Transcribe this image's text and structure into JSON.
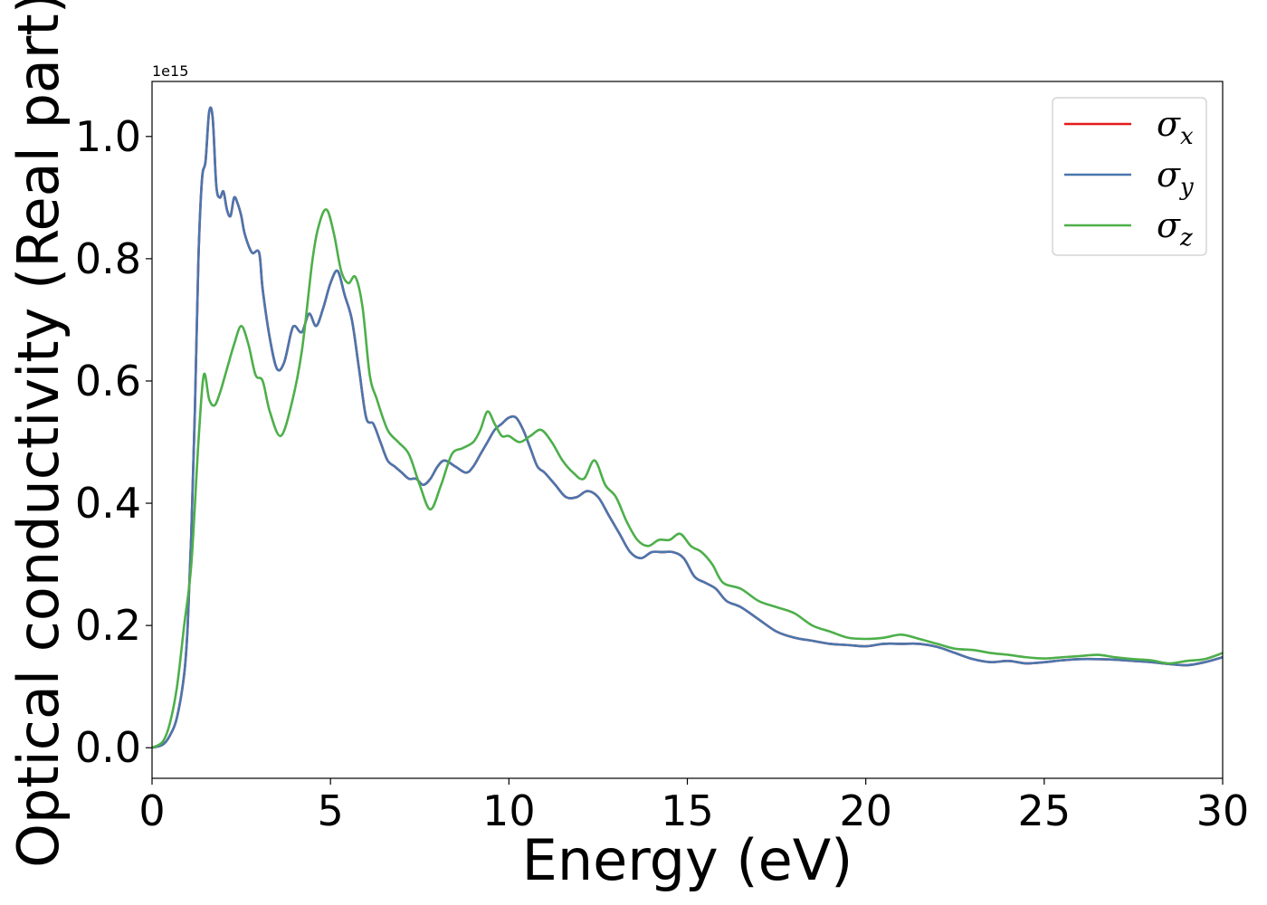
{
  "chart_data": {
    "type": "line",
    "title": "",
    "xlabel": "Energy (eV)",
    "ylabel": "Optical conductivity (Real part)",
    "y_offset_label": "1e15",
    "y_scale_factor": 1000000000000000.0,
    "xlim": [
      0,
      30
    ],
    "ylim": [
      -0.05,
      1.09
    ],
    "x_ticks": [
      0,
      5,
      10,
      15,
      20,
      25,
      30
    ],
    "x_tick_labels": [
      "0",
      "5",
      "10",
      "15",
      "20",
      "25",
      "30"
    ],
    "y_ticks": [
      0.0,
      0.2,
      0.4,
      0.6,
      0.8,
      1.0
    ],
    "y_tick_labels": [
      "0.0",
      "0.2",
      "0.4",
      "0.6",
      "0.8",
      "1.0"
    ],
    "grid": false,
    "legend_position": "top-right",
    "series": [
      {
        "name": "σx",
        "name_base": "σ",
        "name_sub": "x",
        "color": "#e41a1c",
        "x": [
          0,
          0.3,
          0.5,
          0.7,
          0.9,
          1.0,
          1.1,
          1.2,
          1.3,
          1.4,
          1.5,
          1.6,
          1.7,
          1.8,
          1.9,
          2.0,
          2.1,
          2.2,
          2.3,
          2.4,
          2.5,
          2.6,
          2.8,
          3.0,
          3.1,
          3.3,
          3.5,
          3.7,
          3.9,
          4.0,
          4.2,
          4.4,
          4.6,
          4.8,
          5.0,
          5.2,
          5.4,
          5.6,
          5.8,
          6.0,
          6.2,
          6.4,
          6.6,
          6.8,
          7.0,
          7.2,
          7.4,
          7.6,
          7.8,
          8.0,
          8.2,
          8.5,
          8.8,
          9.0,
          9.2,
          9.4,
          9.6,
          9.8,
          10.0,
          10.2,
          10.4,
          10.6,
          10.8,
          11.0,
          11.3,
          11.6,
          11.9,
          12.2,
          12.5,
          12.8,
          13.1,
          13.4,
          13.7,
          14.0,
          14.3,
          14.6,
          14.9,
          15.2,
          15.5,
          15.8,
          16.1,
          16.5,
          17.0,
          17.5,
          18.0,
          18.5,
          19.0,
          19.5,
          20.0,
          20.5,
          21.0,
          21.5,
          22.0,
          22.5,
          23.0,
          23.5,
          24.0,
          24.5,
          25.0,
          25.5,
          26.0,
          26.5,
          27.0,
          27.5,
          28.0,
          28.5,
          29.0,
          29.5,
          30.0
        ],
        "values": [
          0.0,
          0.005,
          0.02,
          0.05,
          0.12,
          0.2,
          0.35,
          0.55,
          0.8,
          0.93,
          0.96,
          1.04,
          1.03,
          0.92,
          0.9,
          0.91,
          0.88,
          0.87,
          0.9,
          0.89,
          0.87,
          0.84,
          0.81,
          0.81,
          0.75,
          0.67,
          0.62,
          0.63,
          0.68,
          0.69,
          0.68,
          0.71,
          0.69,
          0.72,
          0.76,
          0.78,
          0.74,
          0.7,
          0.62,
          0.54,
          0.53,
          0.5,
          0.47,
          0.46,
          0.45,
          0.44,
          0.44,
          0.43,
          0.44,
          0.46,
          0.47,
          0.46,
          0.45,
          0.46,
          0.48,
          0.5,
          0.52,
          0.53,
          0.54,
          0.54,
          0.52,
          0.49,
          0.46,
          0.45,
          0.43,
          0.41,
          0.41,
          0.42,
          0.41,
          0.38,
          0.35,
          0.32,
          0.31,
          0.32,
          0.32,
          0.32,
          0.31,
          0.28,
          0.27,
          0.26,
          0.24,
          0.23,
          0.21,
          0.19,
          0.18,
          0.175,
          0.17,
          0.168,
          0.166,
          0.17,
          0.17,
          0.17,
          0.165,
          0.155,
          0.145,
          0.14,
          0.142,
          0.138,
          0.14,
          0.143,
          0.145,
          0.145,
          0.144,
          0.142,
          0.14,
          0.137,
          0.135,
          0.14,
          0.148
        ]
      },
      {
        "name": "σy",
        "name_base": "σ",
        "name_sub": "y",
        "color": "#4a76ad",
        "x": [
          0,
          0.3,
          0.5,
          0.7,
          0.9,
          1.0,
          1.1,
          1.2,
          1.3,
          1.4,
          1.5,
          1.6,
          1.7,
          1.8,
          1.9,
          2.0,
          2.1,
          2.2,
          2.3,
          2.4,
          2.5,
          2.6,
          2.8,
          3.0,
          3.1,
          3.3,
          3.5,
          3.7,
          3.9,
          4.0,
          4.2,
          4.4,
          4.6,
          4.8,
          5.0,
          5.2,
          5.4,
          5.6,
          5.8,
          6.0,
          6.2,
          6.4,
          6.6,
          6.8,
          7.0,
          7.2,
          7.4,
          7.6,
          7.8,
          8.0,
          8.2,
          8.5,
          8.8,
          9.0,
          9.2,
          9.4,
          9.6,
          9.8,
          10.0,
          10.2,
          10.4,
          10.6,
          10.8,
          11.0,
          11.3,
          11.6,
          11.9,
          12.2,
          12.5,
          12.8,
          13.1,
          13.4,
          13.7,
          14.0,
          14.3,
          14.6,
          14.9,
          15.2,
          15.5,
          15.8,
          16.1,
          16.5,
          17.0,
          17.5,
          18.0,
          18.5,
          19.0,
          19.5,
          20.0,
          20.5,
          21.0,
          21.5,
          22.0,
          22.5,
          23.0,
          23.5,
          24.0,
          24.5,
          25.0,
          25.5,
          26.0,
          26.5,
          27.0,
          27.5,
          28.0,
          28.5,
          29.0,
          29.5,
          30.0
        ],
        "values": [
          0.0,
          0.005,
          0.02,
          0.05,
          0.12,
          0.2,
          0.35,
          0.55,
          0.8,
          0.93,
          0.96,
          1.04,
          1.03,
          0.92,
          0.9,
          0.91,
          0.88,
          0.87,
          0.9,
          0.89,
          0.87,
          0.84,
          0.81,
          0.81,
          0.75,
          0.67,
          0.62,
          0.63,
          0.68,
          0.69,
          0.68,
          0.71,
          0.69,
          0.72,
          0.76,
          0.78,
          0.74,
          0.7,
          0.62,
          0.54,
          0.53,
          0.5,
          0.47,
          0.46,
          0.45,
          0.44,
          0.44,
          0.43,
          0.44,
          0.46,
          0.47,
          0.46,
          0.45,
          0.46,
          0.48,
          0.5,
          0.52,
          0.53,
          0.54,
          0.54,
          0.52,
          0.49,
          0.46,
          0.45,
          0.43,
          0.41,
          0.41,
          0.42,
          0.41,
          0.38,
          0.35,
          0.32,
          0.31,
          0.32,
          0.32,
          0.32,
          0.31,
          0.28,
          0.27,
          0.26,
          0.24,
          0.23,
          0.21,
          0.19,
          0.18,
          0.175,
          0.17,
          0.168,
          0.166,
          0.17,
          0.17,
          0.17,
          0.165,
          0.155,
          0.145,
          0.14,
          0.142,
          0.138,
          0.14,
          0.143,
          0.145,
          0.145,
          0.144,
          0.142,
          0.14,
          0.137,
          0.135,
          0.14,
          0.148
        ]
      },
      {
        "name": "σz",
        "name_base": "σ",
        "name_sub": "z",
        "color": "#4daf4a",
        "x": [
          0,
          0.3,
          0.5,
          0.7,
          0.9,
          1.1,
          1.3,
          1.45,
          1.6,
          1.75,
          1.9,
          2.1,
          2.3,
          2.5,
          2.7,
          2.9,
          3.1,
          3.3,
          3.6,
          3.9,
          4.2,
          4.5,
          4.7,
          4.9,
          5.1,
          5.3,
          5.5,
          5.7,
          5.9,
          6.1,
          6.3,
          6.6,
          6.9,
          7.2,
          7.5,
          7.8,
          8.1,
          8.4,
          8.7,
          9.0,
          9.2,
          9.4,
          9.6,
          9.8,
          10.0,
          10.3,
          10.6,
          10.9,
          11.2,
          11.5,
          11.8,
          12.1,
          12.4,
          12.7,
          13.0,
          13.3,
          13.6,
          13.9,
          14.2,
          14.5,
          14.8,
          15.1,
          15.4,
          15.7,
          16.0,
          16.5,
          17.0,
          17.5,
          18.0,
          18.5,
          19.0,
          19.5,
          20.0,
          20.5,
          21.0,
          21.5,
          22.0,
          22.5,
          23.0,
          23.5,
          24.0,
          24.5,
          25.0,
          25.5,
          26.0,
          26.5,
          27.0,
          27.5,
          28.0,
          28.5,
          29.0,
          29.5,
          30.0
        ],
        "values": [
          0.0,
          0.01,
          0.04,
          0.1,
          0.2,
          0.3,
          0.5,
          0.61,
          0.57,
          0.56,
          0.58,
          0.62,
          0.66,
          0.69,
          0.66,
          0.61,
          0.6,
          0.55,
          0.51,
          0.56,
          0.65,
          0.8,
          0.86,
          0.88,
          0.84,
          0.78,
          0.76,
          0.77,
          0.72,
          0.61,
          0.57,
          0.52,
          0.5,
          0.48,
          0.43,
          0.39,
          0.43,
          0.48,
          0.49,
          0.5,
          0.52,
          0.55,
          0.53,
          0.51,
          0.51,
          0.5,
          0.51,
          0.52,
          0.5,
          0.47,
          0.45,
          0.44,
          0.47,
          0.43,
          0.41,
          0.37,
          0.34,
          0.33,
          0.34,
          0.34,
          0.35,
          0.33,
          0.32,
          0.3,
          0.27,
          0.26,
          0.24,
          0.23,
          0.22,
          0.2,
          0.19,
          0.18,
          0.178,
          0.18,
          0.185,
          0.178,
          0.17,
          0.162,
          0.16,
          0.155,
          0.152,
          0.148,
          0.146,
          0.148,
          0.15,
          0.152,
          0.148,
          0.145,
          0.143,
          0.138,
          0.142,
          0.145,
          0.155
        ]
      }
    ]
  }
}
